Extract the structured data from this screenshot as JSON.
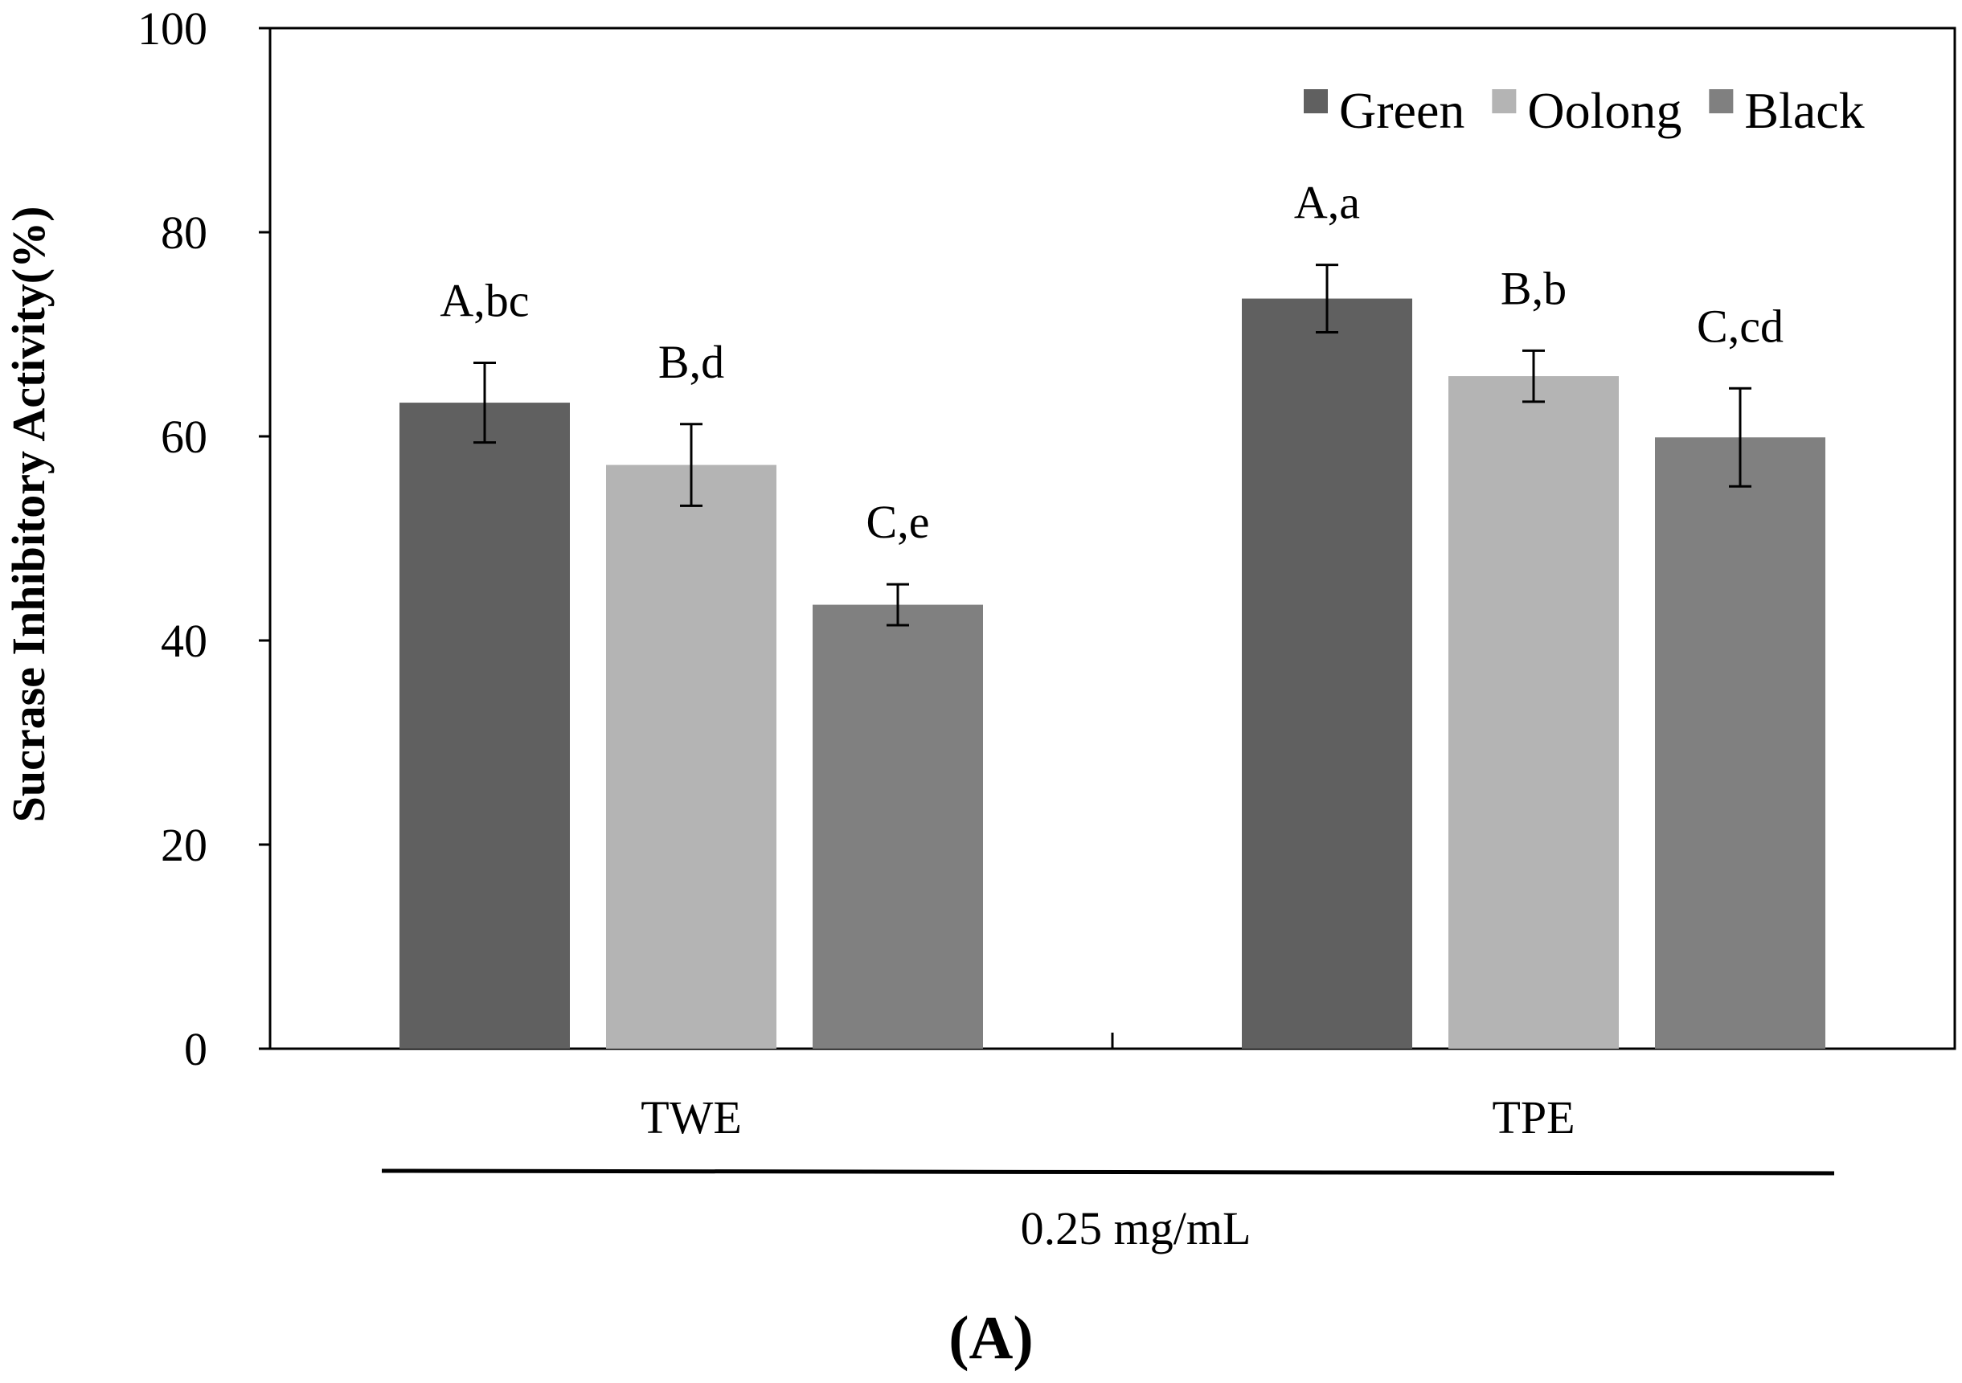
{
  "chart_data": {
    "type": "bar",
    "title": "",
    "ylabel": "Sucrase Inhibitory Activity(%)",
    "xlabel": "0.25 mg/mL",
    "panel_label": "(A)",
    "ylim": [
      0,
      100
    ],
    "yticks": [
      0,
      20,
      40,
      60,
      80,
      100
    ],
    "categories": [
      "TWE",
      "TPE"
    ],
    "legend_position": "top-right",
    "series": [
      {
        "name": "Green",
        "color": "#606060",
        "values": [
          63.3,
          73.5
        ],
        "errors": [
          3.9,
          3.3
        ],
        "labels": [
          "A,bc",
          "A,a"
        ]
      },
      {
        "name": "Oolong",
        "color": "#b4b4b4",
        "values": [
          57.2,
          65.9
        ],
        "errors": [
          4.0,
          2.5
        ],
        "labels": [
          "B,d",
          "B,b"
        ]
      },
      {
        "name": "Black",
        "color": "#808080",
        "values": [
          43.5,
          59.9
        ],
        "errors": [
          2.0,
          4.8
        ],
        "labels": [
          "C,e",
          "C,cd"
        ]
      }
    ]
  }
}
